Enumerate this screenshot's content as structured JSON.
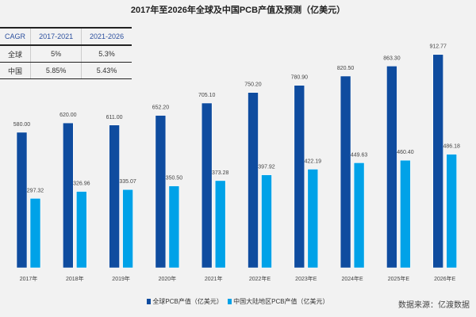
{
  "chart_data": {
    "type": "bar",
    "title": "2017年至2026年全球及中国PCB产值及预测（亿美元）",
    "categories": [
      "2017年",
      "2018年",
      "2019年",
      "2020年",
      "2021年",
      "2022年E",
      "2023年E",
      "2024年E",
      "2025年E",
      "2026年E"
    ],
    "series": [
      {
        "name": "全球PCB产值（亿美元）",
        "color": "#0f4c9f",
        "values": [
          580.0,
          620.0,
          611.0,
          652.2,
          705.1,
          750.2,
          780.9,
          820.5,
          863.3,
          912.77
        ],
        "labels": [
          "580.00",
          "620.00",
          "611.00",
          "652.20",
          "705.10",
          "750.20",
          "780.90",
          "820.50",
          "863.30",
          "912.77"
        ]
      },
      {
        "name": "中国大陆地区PCB产值（亿美元）",
        "color": "#00a2e8",
        "values": [
          297.32,
          326.96,
          335.07,
          350.5,
          373.28,
          397.92,
          422.19,
          449.63,
          460.4,
          486.18
        ],
        "labels": [
          "297.32",
          "326.96",
          "335.07",
          "350.50",
          "373.28",
          "397.92",
          "422.19",
          "449.63",
          "460.40",
          "486.18"
        ]
      }
    ],
    "ylim": [
      0,
      1000
    ],
    "grid": false,
    "legend": "bottom"
  },
  "table": {
    "headers": [
      "CAGR",
      "2017-2021",
      "2021-2026"
    ],
    "rows": [
      [
        "全球",
        "5%",
        "5.3%"
      ],
      [
        "中国",
        "5.85%",
        "5.43%"
      ]
    ]
  },
  "source": "数据来源：亿渡数据"
}
